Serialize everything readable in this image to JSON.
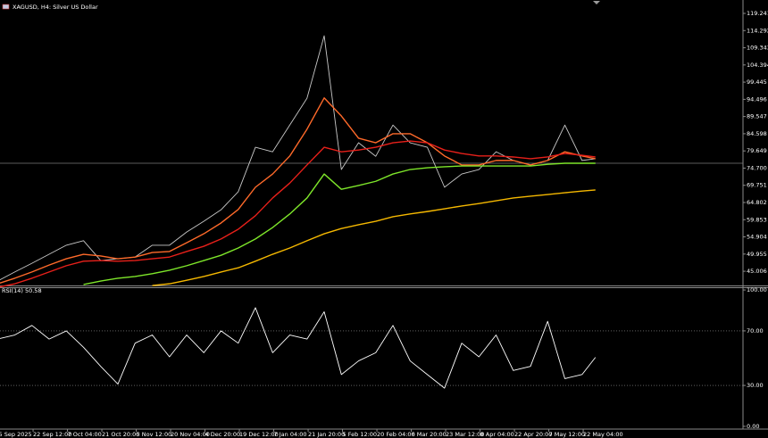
{
  "chart_data": [
    {
      "type": "line",
      "title": "XAGUSD, H4:  Silver US Dollar",
      "x": [
        -45,
        0,
        45,
        90,
        135,
        180,
        225,
        270,
        315,
        360,
        405,
        450,
        495,
        540,
        585,
        630,
        675,
        720,
        765,
        810,
        855,
        900,
        945,
        990,
        1035,
        1080,
        1125,
        1170,
        1215,
        1260,
        1305,
        1350,
        1395,
        1440,
        1485,
        1520
      ],
      "xlim": [
        -38.6,
        1906.3
      ],
      "ylim": [
        40.92,
        123.09
      ],
      "yticks": [
        {
          "value": 119.241,
          "label": "119.241"
        },
        {
          "value": 114.292,
          "label": "114.292"
        },
        {
          "value": 109.343,
          "label": "109.343"
        },
        {
          "value": 104.394,
          "label": "104.394"
        },
        {
          "value": 99.445,
          "label": "99.445"
        },
        {
          "value": 94.496,
          "label": "94.496"
        },
        {
          "value": 89.547,
          "label": "89.547"
        },
        {
          "value": 84.598,
          "label": "84.598"
        },
        {
          "value": 79.649,
          "label": "79.649"
        },
        {
          "value": 74.7,
          "label": "74.700"
        },
        {
          "value": 69.751,
          "label": "69.751"
        },
        {
          "value": 64.802,
          "label": "64.802"
        },
        {
          "value": 59.853,
          "label": "59.853"
        },
        {
          "value": 54.904,
          "label": "54.904"
        },
        {
          "value": 49.955,
          "label": "49.955"
        },
        {
          "value": 45.006,
          "label": "45.006"
        }
      ],
      "last_price": 76.1,
      "series": [
        {
          "color": "#c8c8c8",
          "values": [
            42.2,
            44.8,
            47.3,
            49.9,
            52.5,
            53.8,
            48.1,
            48.6,
            49.1,
            52.5,
            52.5,
            56.3,
            59.4,
            62.7,
            67.9,
            80.7,
            79.4,
            87.1,
            94.8,
            112.8,
            74.3,
            82.0,
            78.1,
            87.1,
            82.0,
            80.7,
            69.2,
            73.0,
            74.3,
            79.4,
            76.9,
            75.6,
            76.9,
            87.1,
            76.9,
            77.4
          ]
        },
        {
          "color": "#ff6a2a",
          "values": [
            41.4,
            43.0,
            44.8,
            46.8,
            48.6,
            49.9,
            49.4,
            48.6,
            49.1,
            50.4,
            50.7,
            53.2,
            55.8,
            58.9,
            62.8,
            69.2,
            73.0,
            78.2,
            85.9,
            94.9,
            89.7,
            83.3,
            82.0,
            84.6,
            84.6,
            82.0,
            78.2,
            75.6,
            75.6,
            76.9,
            76.9,
            75.6,
            76.9,
            79.4,
            78.2,
            77.4
          ]
        },
        {
          "color": "#e8201a",
          "values": [
            40.4,
            41.4,
            43.0,
            44.8,
            46.6,
            47.9,
            48.1,
            47.9,
            48.1,
            48.6,
            49.1,
            50.7,
            52.2,
            54.3,
            57.1,
            61.0,
            66.1,
            70.4,
            75.6,
            80.7,
            79.4,
            79.9,
            80.7,
            82.0,
            82.5,
            82.0,
            79.9,
            78.9,
            78.2,
            78.2,
            77.9,
            77.4,
            77.9,
            78.9,
            78.4,
            77.9
          ]
        },
        {
          "color": "#7ee62a",
          "values": [
            null,
            null,
            null,
            null,
            null,
            41.2,
            42.2,
            43.0,
            43.5,
            44.3,
            45.3,
            46.6,
            48.1,
            49.6,
            51.7,
            54.3,
            57.6,
            61.5,
            66.1,
            73.0,
            68.6,
            69.7,
            70.9,
            73.0,
            74.3,
            74.8,
            75.1,
            75.3,
            75.3,
            75.3,
            75.3,
            75.3,
            75.8,
            76.1,
            76.1,
            76.1
          ]
        },
        {
          "color": "#f5b800",
          "values": [
            null,
            null,
            null,
            null,
            null,
            null,
            null,
            null,
            null,
            40.9,
            41.4,
            42.4,
            43.5,
            44.8,
            46.0,
            47.9,
            49.9,
            51.7,
            53.8,
            55.8,
            57.3,
            58.4,
            59.4,
            60.7,
            61.5,
            62.2,
            63.0,
            63.8,
            64.5,
            65.3,
            66.1,
            66.6,
            67.1,
            67.6,
            68.1,
            68.4
          ]
        }
      ]
    },
    {
      "type": "line",
      "title": "RSI(14) 50.58",
      "x": [
        -45,
        0,
        45,
        90,
        135,
        180,
        225,
        270,
        315,
        360,
        405,
        450,
        495,
        540,
        585,
        630,
        675,
        720,
        765,
        810,
        855,
        900,
        945,
        990,
        1035,
        1080,
        1125,
        1170,
        1215,
        1260,
        1305,
        1350,
        1395,
        1440,
        1485,
        1520
      ],
      "xlim": [
        -38.6,
        1906.3
      ],
      "xticks": [
        {
          "value": -42,
          "label": "5 Sep 2025"
        },
        {
          "value": 48,
          "label": "22 Sep 12:00"
        },
        {
          "value": 138,
          "label": "7 Oct 04:00"
        },
        {
          "value": 228,
          "label": "21 Oct 20:00"
        },
        {
          "value": 318,
          "label": "5 Nov 12:00"
        },
        {
          "value": 408,
          "label": "20 Nov 04:00"
        },
        {
          "value": 498,
          "label": "4 Dec 20:00"
        },
        {
          "value": 588,
          "label": "19 Dec 12:00"
        },
        {
          "value": 678,
          "label": "7 Jan 04:00"
        },
        {
          "value": 768,
          "label": "21 Jan 20:00"
        },
        {
          "value": 858,
          "label": "5 Feb 12:00"
        },
        {
          "value": 948,
          "label": "20 Feb 04:00"
        },
        {
          "value": 1038,
          "label": "6 Mar 20:00"
        },
        {
          "value": 1128,
          "label": "23 Mar 12:00"
        },
        {
          "value": 1218,
          "label": "8 Apr 04:00"
        },
        {
          "value": 1308,
          "label": "22 Apr 20:00"
        },
        {
          "value": 1398,
          "label": "7 May 12:00"
        },
        {
          "value": 1488,
          "label": "22 May 04:00"
        }
      ],
      "ylim": [
        -2,
        102
      ],
      "yticks": [
        {
          "value": 100,
          "label": "100.00"
        },
        {
          "value": 70,
          "label": "70.00"
        },
        {
          "value": 30,
          "label": "30.00"
        },
        {
          "value": 0,
          "label": "0.00"
        }
      ],
      "levels": [
        70,
        30
      ],
      "series": [
        {
          "color": "#ffffff",
          "values": [
            64,
            67,
            74,
            64,
            70,
            58,
            44,
            31,
            61,
            67,
            51,
            67,
            54,
            70,
            61,
            87,
            54,
            67,
            64,
            84,
            38,
            48,
            54,
            74,
            48,
            38,
            28,
            61,
            51,
            67,
            41,
            44,
            77,
            35,
            38,
            50.58
          ]
        }
      ]
    }
  ]
}
